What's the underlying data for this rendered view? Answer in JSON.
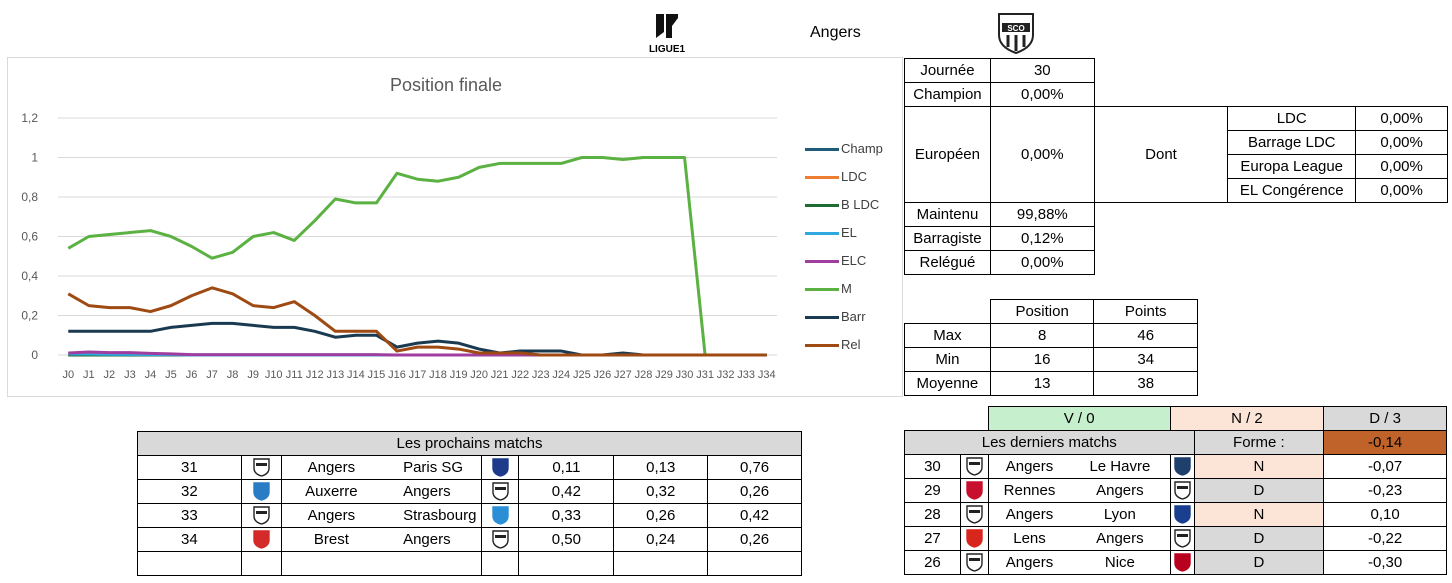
{
  "header": {
    "league_logo_text": "LIGUE1",
    "team_name": "Angers"
  },
  "colors": {
    "Champ": "#1f5c7a",
    "LDC": "#ed7d31",
    "B LDC": "#1e6b34",
    "EL": "#2fa8e0",
    "ELC": "#a03ea0",
    "M": "#5bb141",
    "Barr": "#1a3a52",
    "Rel": "#9e4a12"
  },
  "chart_data": {
    "type": "line",
    "title": "Position finale",
    "categories": [
      "J0",
      "J1",
      "J2",
      "J3",
      "J4",
      "J5",
      "J6",
      "J7",
      "J8",
      "J9",
      "J10",
      "J11",
      "J12",
      "J13",
      "J14",
      "J15",
      "J16",
      "J17",
      "J18",
      "J19",
      "J20",
      "J21",
      "J22",
      "J23",
      "J24",
      "J25",
      "J26",
      "J27",
      "J28",
      "J29",
      "J30",
      "J31",
      "J32",
      "J33",
      "J34"
    ],
    "ylim": [
      0,
      1.2
    ],
    "yticks": [
      "0",
      "0,2",
      "0,4",
      "0,6",
      "0,8",
      "1",
      "1,2"
    ],
    "grid": true,
    "legend_position": "right",
    "series": [
      {
        "name": "Champ",
        "values": [
          0,
          0,
          0,
          0,
          0,
          0,
          0,
          0,
          0,
          0,
          0,
          0,
          0,
          0,
          0,
          0,
          0,
          0,
          0,
          0,
          0,
          0,
          0,
          0,
          0,
          0,
          0,
          0,
          0,
          0,
          0,
          0,
          0,
          0,
          0
        ]
      },
      {
        "name": "LDC",
        "values": [
          0,
          0,
          0,
          0,
          0,
          0,
          0,
          0,
          0,
          0,
          0,
          0,
          0,
          0,
          0,
          0,
          0,
          0,
          0,
          0,
          0,
          0,
          0,
          0,
          0,
          0,
          0,
          0,
          0,
          0,
          0,
          0,
          0,
          0,
          0
        ]
      },
      {
        "name": "B LDC",
        "values": [
          0,
          0,
          0,
          0,
          0,
          0,
          0,
          0,
          0,
          0,
          0,
          0,
          0,
          0,
          0,
          0,
          0,
          0,
          0,
          0,
          0,
          0,
          0,
          0,
          0,
          0,
          0,
          0,
          0,
          0,
          0,
          0,
          0,
          0,
          0
        ]
      },
      {
        "name": "EL",
        "values": [
          0.005,
          0.005,
          0.003,
          0.003,
          0.002,
          0.002,
          0,
          0,
          0,
          0,
          0,
          0,
          0,
          0,
          0,
          0,
          0,
          0,
          0,
          0,
          0,
          0,
          0,
          0,
          0,
          0,
          0,
          0,
          0,
          0,
          0,
          0,
          0,
          0,
          0
        ]
      },
      {
        "name": "ELC",
        "values": [
          0.01,
          0.015,
          0.012,
          0.012,
          0.008,
          0.006,
          0.002,
          0.002,
          0.002,
          0.002,
          0.002,
          0.002,
          0.002,
          0.002,
          0.002,
          0.002,
          0,
          0,
          0,
          0,
          0,
          0,
          0,
          0,
          0,
          0,
          0,
          0,
          0,
          0,
          0,
          0,
          0,
          0,
          0
        ]
      },
      {
        "name": "M",
        "values": [
          0.54,
          0.6,
          0.61,
          0.62,
          0.63,
          0.6,
          0.55,
          0.49,
          0.52,
          0.6,
          0.62,
          0.58,
          0.68,
          0.79,
          0.77,
          0.77,
          0.92,
          0.89,
          0.88,
          0.9,
          0.95,
          0.97,
          0.97,
          0.97,
          0.97,
          1.0,
          1.0,
          0.99,
          1.0,
          1.0,
          1.0,
          0,
          0,
          0,
          0
        ]
      },
      {
        "name": "Barr",
        "values": [
          0.12,
          0.12,
          0.12,
          0.12,
          0.12,
          0.14,
          0.15,
          0.16,
          0.16,
          0.15,
          0.14,
          0.14,
          0.12,
          0.09,
          0.1,
          0.1,
          0.04,
          0.06,
          0.07,
          0.06,
          0.03,
          0.01,
          0.02,
          0.02,
          0.02,
          0,
          0,
          0.01,
          0,
          0,
          0,
          0,
          0,
          0,
          0
        ]
      },
      {
        "name": "Rel",
        "values": [
          0.31,
          0.25,
          0.24,
          0.24,
          0.22,
          0.25,
          0.3,
          0.34,
          0.31,
          0.25,
          0.24,
          0.27,
          0.2,
          0.12,
          0.12,
          0.12,
          0.02,
          0.04,
          0.04,
          0.03,
          0.01,
          0.01,
          0.01,
          0,
          0,
          0,
          0,
          0,
          0,
          0,
          0,
          0,
          0,
          0,
          0
        ]
      }
    ]
  },
  "stats_table": {
    "journee_label": "Journée",
    "journee_value": "30",
    "champion_label": "Champion",
    "champion_value": "0,00%",
    "europeen_label": "Européen",
    "europeen_value": "0,00%",
    "dont_label": "Dont",
    "sub": [
      {
        "label": "LDC",
        "value": "0,00%"
      },
      {
        "label": "Barrage LDC",
        "value": "0,00%"
      },
      {
        "label": "Europa League",
        "value": "0,00%"
      },
      {
        "label": "EL Congérence",
        "value": "0,00%"
      }
    ],
    "maintenu_label": "Maintenu",
    "maintenu_value": "99,88%",
    "barragiste_label": "Barragiste",
    "barragiste_value": "0,12%",
    "relegue_label": "Relégué",
    "relegue_value": "0,00%"
  },
  "range_table": {
    "headers": [
      "Position",
      "Points"
    ],
    "rows": [
      {
        "label": "Max",
        "position": "8",
        "points": "46"
      },
      {
        "label": "Min",
        "position": "16",
        "points": "34"
      },
      {
        "label": "Moyenne",
        "position": "13",
        "points": "38"
      }
    ]
  },
  "next_matches": {
    "title": "Les prochains matchs",
    "rows": [
      {
        "day": "31",
        "home": "Angers",
        "away": "Paris SG",
        "home_icon": "angers-crest",
        "away_icon": "psg-crest",
        "p1": "0,11",
        "p2": "0,13",
        "p3": "0,76"
      },
      {
        "day": "32",
        "home": "Auxerre",
        "away": "Angers",
        "home_icon": "auxerre-crest",
        "away_icon": "angers-crest",
        "p1": "0,42",
        "p2": "0,32",
        "p3": "0,26"
      },
      {
        "day": "33",
        "home": "Angers",
        "away": "Strasbourg",
        "home_icon": "angers-crest",
        "away_icon": "strasbourg-crest",
        "p1": "0,33",
        "p2": "0,26",
        "p3": "0,42"
      },
      {
        "day": "34",
        "home": "Brest",
        "away": "Angers",
        "home_icon": "brest-crest",
        "away_icon": "angers-crest",
        "p1": "0,50",
        "p2": "0,24",
        "p3": "0,26"
      }
    ]
  },
  "last_matches": {
    "summary": [
      "V / 0",
      "N / 2",
      "D / 3"
    ],
    "title": "Les derniers matchs",
    "forme_label": "Forme :",
    "forme_value": "-0,14",
    "rows": [
      {
        "day": "30",
        "home": "Angers",
        "away": "Le Havre",
        "home_icon": "angers-crest",
        "away_icon": "le-havre-crest",
        "result": "N",
        "score": "-0,07"
      },
      {
        "day": "29",
        "home": "Rennes",
        "away": "Angers",
        "home_icon": "rennes-crest",
        "away_icon": "angers-crest",
        "result": "D",
        "score": "-0,23"
      },
      {
        "day": "28",
        "home": "Angers",
        "away": "Lyon",
        "home_icon": "angers-crest",
        "away_icon": "lyon-crest",
        "result": "N",
        "score": "0,10"
      },
      {
        "day": "27",
        "home": "Lens",
        "away": "Angers",
        "home_icon": "lens-crest",
        "away_icon": "angers-crest",
        "result": "D",
        "score": "-0,22"
      },
      {
        "day": "26",
        "home": "Angers",
        "away": "Nice",
        "home_icon": "angers-crest",
        "away_icon": "nice-crest",
        "result": "D",
        "score": "-0,30"
      }
    ]
  }
}
